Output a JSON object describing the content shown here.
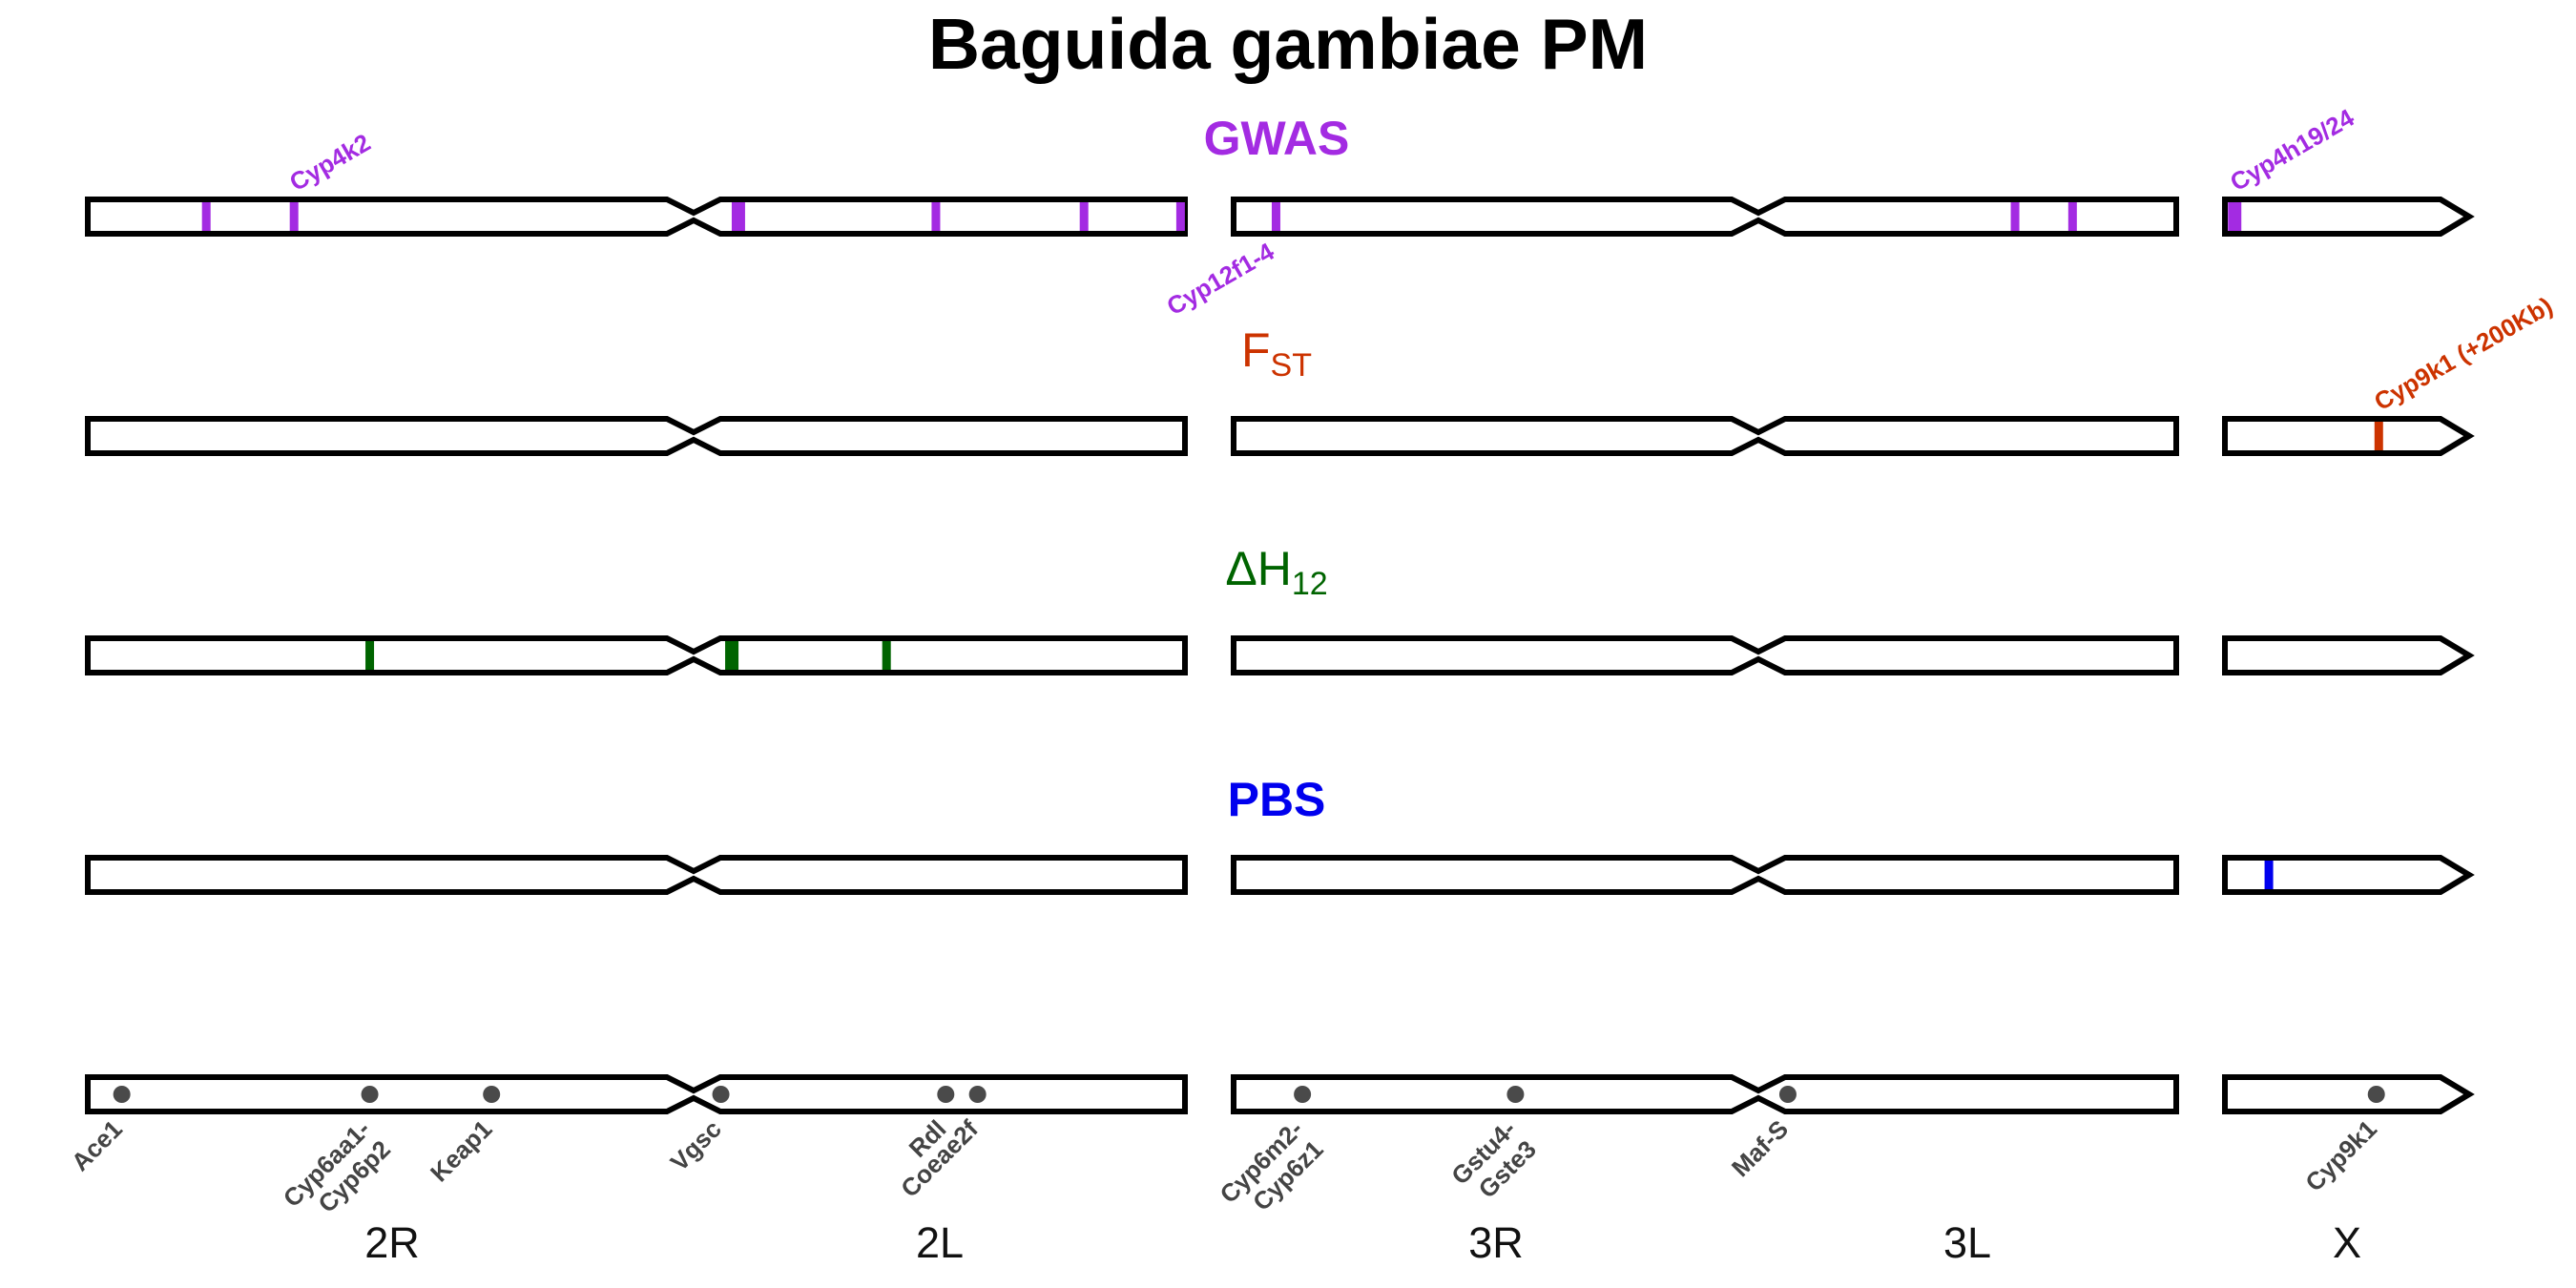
{
  "title": "Baguida gambiae PM",
  "colors": {
    "gwas": "#a32be2",
    "fst": "#cc3300",
    "h12": "#006400",
    "pbs": "#0000ee",
    "gene_dot": "#4a4a4a",
    "outline": "#000000"
  },
  "tracks": [
    {
      "id": "gwas",
      "title": "GWAS",
      "subscript": "",
      "bold": true
    },
    {
      "id": "fst",
      "title": "F",
      "subscript": "ST",
      "bold": false
    },
    {
      "id": "h12",
      "title": "ΔH",
      "subscript": "12",
      "bold": false
    },
    {
      "id": "pbs",
      "title": "PBS",
      "subscript": "",
      "bold": true
    }
  ],
  "arms": [
    "2R",
    "2L",
    "3R",
    "3L",
    "X"
  ],
  "hits": {
    "gwas": [
      {
        "chrom": "2",
        "pos": 0.108,
        "label": ""
      },
      {
        "chrom": "2",
        "pos": 0.188,
        "label": "Cyp4k2"
      },
      {
        "chrom": "2",
        "pos": 0.593,
        "label": "",
        "wide": true
      },
      {
        "chrom": "2",
        "pos": 0.773,
        "label": ""
      },
      {
        "chrom": "2",
        "pos": 0.908,
        "label": ""
      },
      {
        "chrom": "2",
        "pos": 0.996,
        "label": "Cyp12f1-4"
      },
      {
        "chrom": "3",
        "pos": 0.045,
        "label": ""
      },
      {
        "chrom": "3",
        "pos": 0.829,
        "label": ""
      },
      {
        "chrom": "3",
        "pos": 0.89,
        "label": ""
      },
      {
        "chrom": "X",
        "pos": 0.04,
        "label": "Cyp4h19/24",
        "wide": true
      }
    ],
    "fst": [
      {
        "chrom": "X",
        "pos": 0.63,
        "label": "Cyp9k1 (+200Kb)"
      }
    ],
    "h12": [
      {
        "chrom": "2",
        "pos": 0.257,
        "label": ""
      },
      {
        "chrom": "2",
        "pos": 0.587,
        "label": "",
        "wide": true
      },
      {
        "chrom": "2",
        "pos": 0.728,
        "label": ""
      }
    ],
    "pbs": [
      {
        "chrom": "X",
        "pos": 0.18,
        "label": ""
      }
    ]
  },
  "genes": [
    {
      "chrom": "2",
      "pos": 0.031,
      "label": [
        "Ace1"
      ]
    },
    {
      "chrom": "2",
      "pos": 0.257,
      "label": [
        "Cyp6aa1-",
        "Cyp6p2"
      ]
    },
    {
      "chrom": "2",
      "pos": 0.368,
      "label": [
        "Keap1"
      ]
    },
    {
      "chrom": "2",
      "pos": 0.577,
      "label": [
        "Vgsc"
      ]
    },
    {
      "chrom": "2",
      "pos": 0.782,
      "label": [
        "Rdl"
      ]
    },
    {
      "chrom": "2",
      "pos": 0.811,
      "label": [
        "Coeae2f"
      ]
    },
    {
      "chrom": "3",
      "pos": 0.073,
      "label": [
        "Cyp6m2-",
        "Cyp6z1"
      ]
    },
    {
      "chrom": "3",
      "pos": 0.299,
      "label": [
        "Gstu4-",
        "Gste3"
      ]
    },
    {
      "chrom": "3",
      "pos": 0.588,
      "label": [
        "Maf-S"
      ]
    },
    {
      "chrom": "X",
      "pos": 0.62,
      "label": [
        "Cyp9k1"
      ]
    }
  ]
}
